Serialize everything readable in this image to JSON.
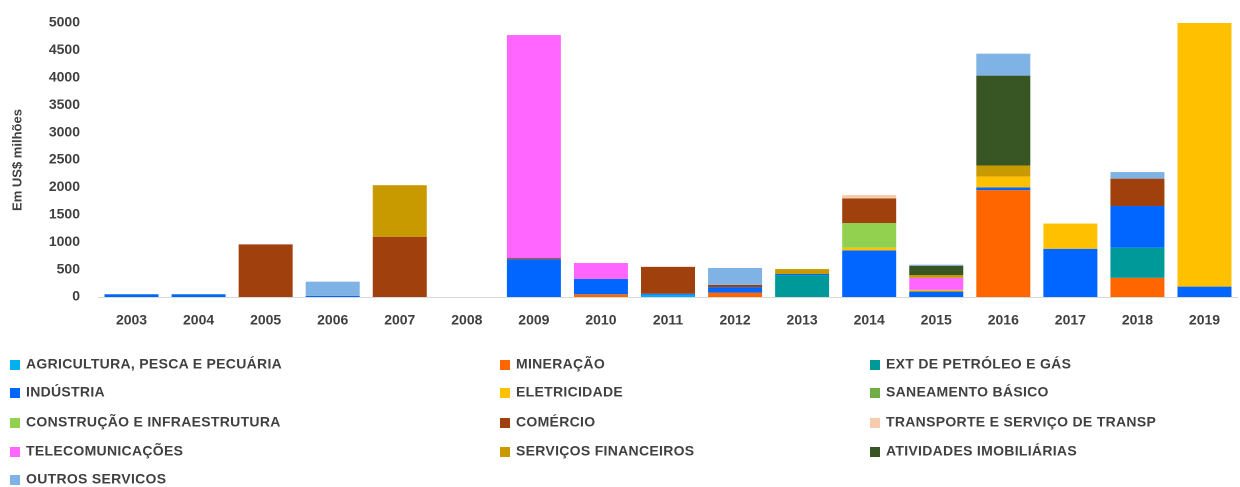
{
  "chart_data": {
    "type": "stacked_bar",
    "y_label": "Em US$ milhões",
    "categories": [
      "2003",
      "2004",
      "2005",
      "2006",
      "2007",
      "2008",
      "2009",
      "2010",
      "2011",
      "2012",
      "2013",
      "2014",
      "2015",
      "2016",
      "2017",
      "2018",
      "2019"
    ],
    "ylim": [
      0,
      5000
    ],
    "yticks": [
      0,
      500,
      1000,
      1500,
      2000,
      2500,
      3000,
      3500,
      4000,
      4500,
      5000
    ],
    "series": [
      {
        "name": "AGRICULTURA, PESCA E PECUÁRIA",
        "color": "#00b0f0",
        "values": [
          0,
          0,
          0,
          0,
          0,
          0,
          0,
          0,
          40,
          0,
          0,
          0,
          0,
          0,
          0,
          0,
          0
        ]
      },
      {
        "name": "MINERAÇÃO",
        "color": "#ff6600",
        "values": [
          0,
          0,
          0,
          0,
          0,
          0,
          0,
          50,
          0,
          80,
          0,
          0,
          0,
          1950,
          0,
          350,
          0
        ]
      },
      {
        "name": "EXT DE PETRÓLEO E GÁS",
        "color": "#009999",
        "values": [
          0,
          0,
          0,
          0,
          0,
          0,
          0,
          0,
          0,
          0,
          400,
          0,
          0,
          0,
          0,
          550,
          0
        ]
      },
      {
        "name": "INDÚSTRIA",
        "color": "#0066ff",
        "values": [
          50,
          50,
          0,
          20,
          0,
          0,
          690,
          280,
          20,
          100,
          20,
          850,
          100,
          50,
          880,
          760,
          190
        ]
      },
      {
        "name": "ELETRICIDADE",
        "color": "#ffc000",
        "values": [
          0,
          0,
          0,
          0,
          0,
          0,
          0,
          0,
          0,
          0,
          0,
          50,
          30,
          200,
          460,
          0,
          4810
        ]
      },
      {
        "name": "SANEAMENTO BÁSICO",
        "color": "#70ad47",
        "values": [
          0,
          0,
          0,
          0,
          0,
          0,
          0,
          0,
          0,
          0,
          0,
          0,
          0,
          0,
          0,
          0,
          0
        ]
      },
      {
        "name": "CONSTRUÇÃO E INFRAESTRUTURA",
        "color": "#92d050",
        "values": [
          0,
          0,
          0,
          0,
          0,
          0,
          0,
          0,
          0,
          0,
          0,
          450,
          0,
          0,
          0,
          0,
          0
        ]
      },
      {
        "name": "COMÉRCIO",
        "color": "#a0410d",
        "values": [
          0,
          0,
          960,
          0,
          1100,
          0,
          20,
          0,
          490,
          40,
          0,
          450,
          0,
          0,
          0,
          500,
          0
        ]
      },
      {
        "name": "TRANSPORTE E SERVIÇO DE TRANSP",
        "color": "#f8cbad",
        "values": [
          0,
          0,
          0,
          0,
          0,
          0,
          0,
          0,
          0,
          0,
          0,
          60,
          0,
          0,
          0,
          0,
          0
        ]
      },
      {
        "name": "TELECOMUNICAÇÕES",
        "color": "#ff66ff",
        "values": [
          0,
          0,
          0,
          0,
          0,
          0,
          4070,
          290,
          0,
          0,
          0,
          0,
          220,
          0,
          0,
          0,
          0
        ]
      },
      {
        "name": "SERVIÇOS FINANCEIROS",
        "color": "#c99a00",
        "values": [
          0,
          0,
          0,
          0,
          940,
          0,
          0,
          0,
          0,
          0,
          90,
          0,
          50,
          200,
          0,
          0,
          0
        ]
      },
      {
        "name": "ATIVIDADES IMOBILIÁRIAS",
        "color": "#375623",
        "values": [
          0,
          0,
          0,
          0,
          0,
          0,
          0,
          0,
          0,
          0,
          0,
          0,
          170,
          1640,
          0,
          0,
          0
        ]
      },
      {
        "name": "OUTROS SERVICOS",
        "color": "#7fb2e5",
        "values": [
          0,
          0,
          0,
          260,
          0,
          0,
          0,
          0,
          0,
          310,
          0,
          0,
          20,
          400,
          0,
          120,
          0
        ]
      }
    ]
  }
}
